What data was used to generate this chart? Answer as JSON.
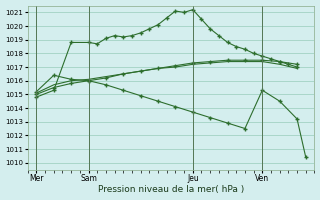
{
  "bg_color": "#d4eeee",
  "grid_color": "#99ccbb",
  "line_color": "#2d6e2d",
  "xlabel": "Pression niveau de la mer( hPa )",
  "ylim": [
    1009.5,
    1021.5
  ],
  "yticks": [
    1010,
    1011,
    1012,
    1013,
    1014,
    1015,
    1016,
    1017,
    1018,
    1019,
    1020,
    1021
  ],
  "xtick_labels": [
    "Mer",
    "Sam",
    "Jeu",
    "Ven"
  ],
  "xtick_positions": [
    1,
    7,
    19,
    27
  ],
  "vline_positions": [
    1,
    7,
    19,
    27
  ],
  "total_points": 33,
  "line1_x": [
    1,
    3,
    5,
    7,
    8,
    9,
    10,
    11,
    12,
    13,
    14,
    15,
    16,
    17,
    18,
    19,
    20,
    21,
    22,
    23,
    24,
    25,
    26,
    27,
    28,
    29,
    30,
    31
  ],
  "line1_y": [
    1014.8,
    1015.3,
    1018.8,
    1018.8,
    1018.7,
    1019.1,
    1019.3,
    1019.2,
    1019.3,
    1019.5,
    1019.8,
    1020.1,
    1020.6,
    1021.1,
    1021.0,
    1021.2,
    1020.5,
    1019.8,
    1019.3,
    1018.8,
    1018.5,
    1018.3,
    1018.0,
    1017.8,
    1017.6,
    1017.4,
    1017.2,
    1017.0
  ],
  "line2_x": [
    1,
    3,
    5,
    7,
    9,
    11,
    13,
    15,
    17,
    19,
    21,
    23,
    25,
    27,
    29,
    31
  ],
  "line2_y": [
    1015.0,
    1015.5,
    1015.8,
    1016.0,
    1016.2,
    1016.5,
    1016.7,
    1016.9,
    1017.1,
    1017.3,
    1017.4,
    1017.5,
    1017.5,
    1017.5,
    1017.4,
    1017.2
  ],
  "line3_x": [
    1,
    3,
    5,
    7,
    9,
    11,
    13,
    15,
    17,
    19,
    21,
    23,
    25,
    27,
    29,
    31
  ],
  "line3_y": [
    1015.1,
    1015.7,
    1016.0,
    1016.1,
    1016.3,
    1016.5,
    1016.7,
    1016.9,
    1017.0,
    1017.2,
    1017.3,
    1017.4,
    1017.4,
    1017.4,
    1017.2,
    1016.9
  ],
  "line4_x": [
    1,
    3,
    5,
    7,
    9,
    11,
    13,
    15,
    17,
    19,
    21,
    23,
    25,
    27,
    29,
    31,
    32
  ],
  "line4_y": [
    1015.2,
    1016.4,
    1016.1,
    1016.0,
    1015.7,
    1015.3,
    1014.9,
    1014.5,
    1014.1,
    1013.7,
    1013.3,
    1012.9,
    1012.5,
    1015.3,
    1014.5,
    1013.2,
    1010.4
  ]
}
